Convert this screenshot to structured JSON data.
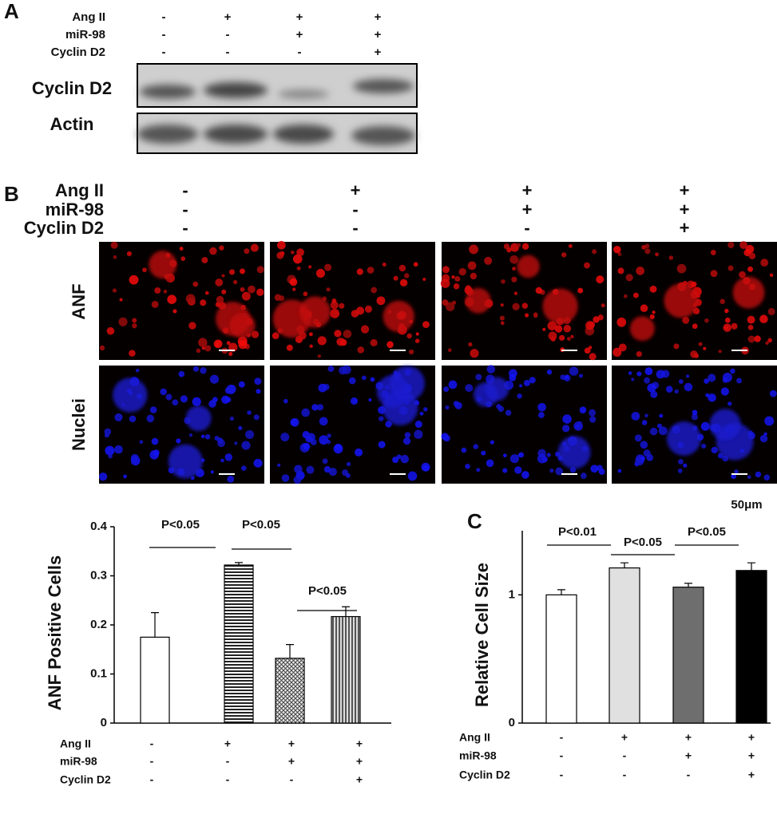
{
  "panel_a": {
    "letter": "A",
    "condition_rows": [
      {
        "name": "Ang II",
        "signs": [
          "-",
          "+",
          "+",
          "+"
        ]
      },
      {
        "name": "miR-98",
        "signs": [
          "-",
          "-",
          "+",
          "+"
        ]
      },
      {
        "name": "Cyclin D2",
        "signs": [
          "-",
          "-",
          "-",
          "+"
        ]
      }
    ],
    "blot_labels": [
      "Cyclin D2",
      "Actin"
    ]
  },
  "panel_b": {
    "letter": "B",
    "condition_rows": [
      {
        "name": "Ang II",
        "signs": [
          "-",
          "+",
          "+",
          "+"
        ]
      },
      {
        "name": "miR-98",
        "signs": [
          "-",
          "-",
          "+",
          "+"
        ]
      },
      {
        "name": "Cyclin D2",
        "signs": [
          "-",
          "-",
          "-",
          "+"
        ]
      }
    ],
    "image_rows": [
      "ANF",
      "Nuclei"
    ],
    "scale_label": "50μm"
  },
  "chart_data": [
    {
      "type": "bar",
      "ylabel": "ANF Positive Cells",
      "values": [
        0.175,
        0.322,
        0.132,
        0.217
      ],
      "errors": [
        0.05,
        0.005,
        0.028,
        0.02
      ],
      "fills": [
        "#ffffff",
        "hstripe",
        "crosshatch",
        "vstripe"
      ],
      "ylim": [
        0,
        0.4
      ],
      "yticks": [
        0,
        0.1,
        0.2,
        0.3,
        0.4
      ],
      "annotations": [
        "P<0.05",
        "P<0.05",
        "P<0.05"
      ],
      "condition_rows": [
        {
          "name": "Ang II",
          "signs": [
            "-",
            "+",
            "+",
            "+"
          ]
        },
        {
          "name": "miR-98",
          "signs": [
            "-",
            "-",
            "+",
            "+"
          ]
        },
        {
          "name": "Cyclin D2",
          "signs": [
            "-",
            "-",
            "-",
            "+"
          ]
        }
      ]
    },
    {
      "type": "bar",
      "panel_label": "C",
      "ylabel": "Relative Cell Size",
      "values": [
        1.0,
        1.21,
        1.06,
        1.19
      ],
      "errors": [
        0.04,
        0.04,
        0.03,
        0.06
      ],
      "fills": [
        "#ffffff",
        "#e0e0e0",
        "#6e6e6e",
        "#000000"
      ],
      "ylim": [
        0,
        1.5
      ],
      "yticks": [
        0,
        1
      ],
      "annotations": [
        "P<0.01",
        "P<0.05",
        "P<0.05"
      ],
      "condition_rows": [
        {
          "name": "Ang II",
          "signs": [
            "-",
            "+",
            "+",
            "+"
          ]
        },
        {
          "name": "miR-98",
          "signs": [
            "-",
            "-",
            "+",
            "+"
          ]
        },
        {
          "name": "Cyclin D2",
          "signs": [
            "-",
            "-",
            "-",
            "+"
          ]
        }
      ]
    }
  ]
}
